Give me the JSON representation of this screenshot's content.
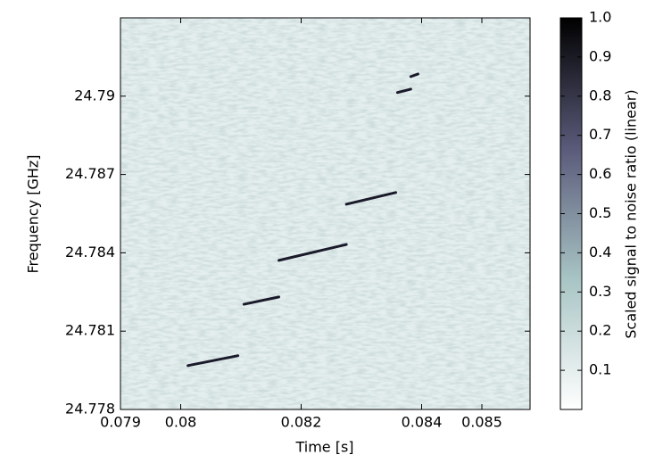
{
  "chart_data": {
    "type": "spectrogram",
    "xlabel": "Time [s]",
    "ylabel": "Frequency [GHz]",
    "colorbar_label": "Scaled signal to noise ratio (linear)",
    "xlim": [
      0.079,
      0.0858
    ],
    "xticks": [
      0.079,
      0.08,
      0.082,
      0.084,
      0.085
    ],
    "ylim": [
      24.778,
      24.793
    ],
    "yticks": [
      24.778,
      24.781,
      24.784,
      24.787,
      24.79
    ],
    "clim": [
      0,
      1
    ],
    "cticks": [
      0.1,
      0.2,
      0.3,
      0.4,
      0.5,
      0.6,
      0.7,
      0.8,
      0.9,
      {
        "value": 1,
        "label": "1.0"
      }
    ],
    "colormap": [
      "#ffffff",
      "#a8c4c4",
      "#5a5a7a",
      "#000000"
    ],
    "color": "#1a1a2a",
    "series": [
      {
        "x": [
          0.08012,
          0.08095
        ],
        "values": [
          24.77968,
          24.78006
        ]
      },
      {
        "x": [
          0.08105,
          0.08163
        ],
        "values": [
          24.78203,
          24.78231
        ]
      },
      {
        "x": [
          0.08163,
          0.08275
        ],
        "values": [
          24.78371,
          24.78432
        ]
      },
      {
        "x": [
          0.08275,
          0.08357
        ],
        "values": [
          24.78586,
          24.78631
        ]
      },
      {
        "x": [
          0.0836,
          0.08382
        ],
        "values": [
          24.79014,
          24.79027
        ]
      },
      {
        "x": [
          0.08382,
          0.08394
        ],
        "values": [
          24.79075,
          24.79085
        ]
      }
    ]
  }
}
